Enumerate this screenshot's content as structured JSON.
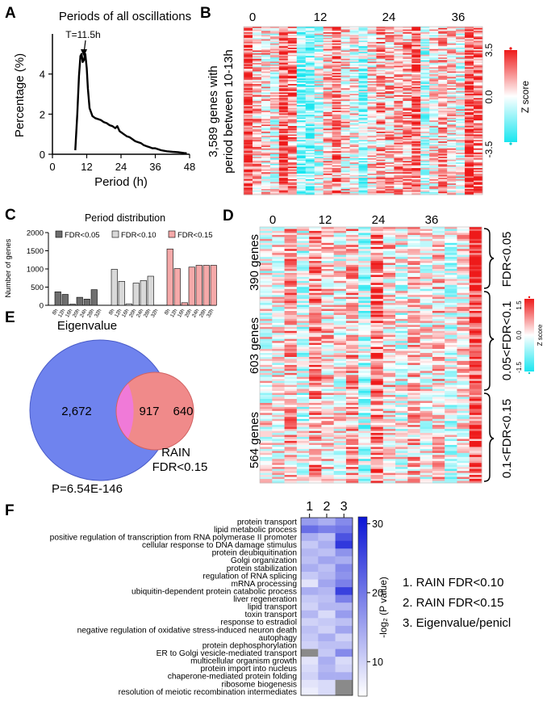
{
  "panel_letters": [
    "A",
    "B",
    "C",
    "D",
    "E",
    "F"
  ],
  "colors": {
    "fdr005": "#6e6e6e",
    "fdr010": "#d9d9d9",
    "fdr015": "#f5a9a9",
    "eigen": "#6f83ee",
    "rain": "#f08a8a",
    "overlap": "#f07ad8",
    "heat_low": "#19e6f0",
    "heat_mid": "#ffffff",
    "heat_high": "#ee1a1a",
    "go_low": "#ffffff",
    "go_high": "#0a14d6"
  },
  "chart_data": [
    {
      "panel": "A",
      "type": "line",
      "title": "Periods of all oscillations",
      "xlabel": "Period (h)",
      "ylabel": "Percentage (%)",
      "xlim": [
        0,
        48
      ],
      "ylim": [
        0,
        6
      ],
      "xticks": [
        0,
        12,
        24,
        36,
        48
      ],
      "yticks": [
        0,
        2,
        4
      ],
      "annotation": "T=11.5h",
      "x": [
        8,
        8.7,
        9.3,
        9.8,
        10.2,
        10.6,
        11.0,
        11.5,
        12.0,
        12.4,
        13.0,
        14.0,
        15.0,
        16.0,
        17.0,
        18.0,
        19.0,
        20.0,
        21.0,
        22.0,
        22.7,
        23.5,
        25.0,
        26.0,
        27.0,
        28.0,
        29.0,
        30.0,
        31.0,
        32.0,
        33.0,
        34.0,
        35.0,
        36.0,
        38.0,
        40.0,
        42.0,
        44.0,
        46.0,
        47.0
      ],
      "y": [
        0.2,
        2.0,
        3.9,
        4.9,
        5.0,
        4.6,
        4.7,
        5.0,
        4.3,
        3.3,
        2.3,
        1.9,
        1.8,
        1.75,
        1.7,
        1.6,
        1.55,
        1.45,
        1.4,
        1.3,
        1.4,
        1.15,
        1.0,
        0.9,
        0.85,
        0.75,
        0.65,
        0.6,
        0.55,
        0.45,
        0.4,
        0.35,
        0.3,
        0.3,
        0.2,
        0.15,
        0.12,
        0.1,
        0.06,
        0.05
      ]
    },
    {
      "panel": "B",
      "type": "heatmap",
      "ylabel_line1": "3,589 genes with",
      "ylabel_line2": "period between 10-13h",
      "xticks": [
        "0",
        "12",
        "24",
        "36"
      ],
      "colorbar": {
        "label": "Z score",
        "max": "3.5",
        "mid": "0.0",
        "min": "-3.5"
      },
      "rows": 120,
      "column_means": [
        0.45,
        0.2,
        0.1,
        -0.05,
        0.5,
        0.3,
        -0.35,
        -0.3,
        -0.1,
        0.15,
        0.3,
        0.1,
        0.0,
        -0.25,
        0.05,
        0.25,
        0.15,
        0.2,
        0.25,
        0.4,
        -0.15,
        0.05,
        0.2,
        0.1,
        0.0,
        0.5,
        0.35
      ]
    },
    {
      "panel": "C",
      "type": "bar",
      "title": "Period distribution",
      "ylabel": "Number of genes",
      "ylim": [
        0,
        2000
      ],
      "yticks": [
        0,
        500,
        1000,
        1500,
        2000
      ],
      "categories": [
        "8h",
        "12h",
        "16h",
        "20h",
        "24h",
        "28h",
        "32h"
      ],
      "series": [
        {
          "name": "FDR<0.05",
          "values": [
            370,
            300,
            30,
            220,
            170,
            430,
            0
          ]
        },
        {
          "name": "FDR<0.10",
          "values": [
            990,
            660,
            40,
            610,
            680,
            800,
            0
          ]
        },
        {
          "name": "FDR<0.15",
          "values": [
            1550,
            1010,
            70,
            1050,
            1100,
            1100,
            1100
          ]
        }
      ]
    },
    {
      "panel": "D",
      "type": "heatmap",
      "xticks": [
        "0",
        "12",
        "24",
        "36"
      ],
      "groups": [
        {
          "label": "390 genes",
          "fdr": "FDR<0.05",
          "rows": 34
        },
        {
          "label": "603 genes",
          "fdr": "0.05<FDR<0.1",
          "rows": 50
        },
        {
          "label": "564 genes",
          "fdr": "0.1<FDR<0.15",
          "rows": 44
        }
      ],
      "colorbar": {
        "label": "Z score",
        "max": "1.5",
        "mid": "0.0",
        "min": "-1.5"
      },
      "column_means": [
        0.0,
        0.05,
        0.2,
        -0.1,
        0.25,
        0.1,
        0.0,
        0.2,
        -0.2,
        0.35,
        0.1,
        -0.05,
        0.15,
        0.0,
        0.1,
        -0.1,
        0.05,
        0.45
      ]
    },
    {
      "panel": "E",
      "type": "venn",
      "sets": [
        {
          "name": "Eigenvalue",
          "only": "2,672"
        },
        {
          "name_line1": "RAIN",
          "name_line2": "FDR<0.15",
          "only": "640"
        }
      ],
      "overlap": "917",
      "pvalue": "P=6.54E-146"
    },
    {
      "panel": "F",
      "type": "heatmap",
      "columns": [
        "1",
        "2",
        "3"
      ],
      "legend": [
        "1. RAIN FDR<0.10",
        "2. RAIN FDR<0.15",
        "3. Eigenvalue/penicl"
      ],
      "colorbar": {
        "label": "-log₂ (P value)",
        "ticks": [
          10,
          20,
          30
        ],
        "range": [
          5,
          31
        ]
      },
      "terms": [
        "protein transport",
        "lipid metabolic process",
        "positive regulation of transcription from RNA polymerase II promoter",
        "cellular response to DNA damage stimulus",
        "protein deubiquitination",
        "Golgi organization",
        "protein stabilization",
        "regulation of RNA splicing",
        "mRNA processing",
        "ubiquitin-dependent protein catabolic process",
        "liver regeneration",
        "lipid transport",
        "toxin transport",
        "response to estradiol",
        "negative regulation of oxidative stress-induced neuron death",
        "autophagy",
        "protein dephosphorylation",
        "ER to Golgi vesicle-mediated transport",
        "multicellular organism growth",
        "protein import into nucleus",
        "chaperone-mediated protein folding",
        "ribosome biogenesis",
        "resolution of meiotic recombination intermediates"
      ],
      "values": [
        [
          16,
          14,
          18
        ],
        [
          21,
          19,
          20
        ],
        [
          14,
          12,
          24
        ],
        [
          11,
          14,
          27
        ],
        [
          13,
          12,
          17
        ],
        [
          12,
          15,
          14
        ],
        [
          14,
          12,
          18
        ],
        [
          11,
          13,
          17
        ],
        [
          8,
          15,
          19
        ],
        [
          14,
          13,
          26
        ],
        [
          11,
          12,
          19
        ],
        [
          10,
          13,
          13
        ],
        [
          13,
          9,
          16
        ],
        [
          10,
          11,
          12
        ],
        [
          12,
          10,
          15
        ],
        [
          11,
          14,
          10
        ],
        [
          10,
          12,
          12
        ],
        [
          null,
          11,
          18
        ],
        [
          8,
          14,
          9
        ],
        [
          9,
          13,
          10
        ],
        [
          10,
          14,
          14
        ],
        [
          8,
          9,
          null
        ],
        [
          7,
          9,
          null
        ]
      ]
    }
  ]
}
